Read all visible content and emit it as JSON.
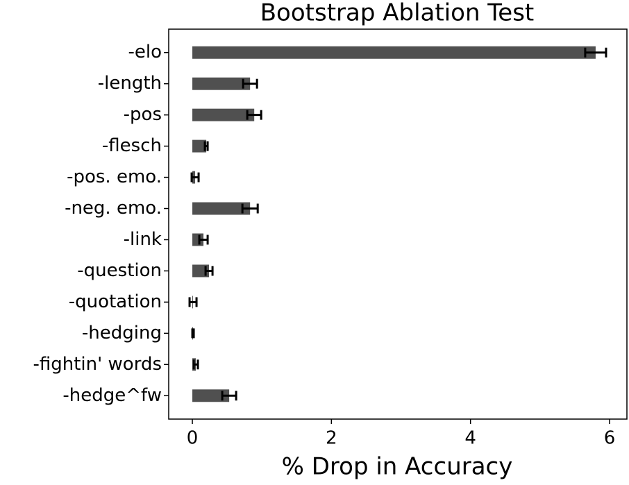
{
  "chart_data": {
    "type": "barh",
    "title": "Bootstrap Ablation Test",
    "xlabel": "% Drop in Accuracy",
    "categories": [
      "-elo",
      "-length",
      "-pos",
      "-flesch",
      "-pos. emo.",
      "-neg. emo.",
      "-link",
      "-question",
      "-quotation",
      "-hedging",
      "-fightin' words",
      "-hedge^fw"
    ],
    "values": [
      5.8,
      0.83,
      0.89,
      0.2,
      0.04,
      0.83,
      0.16,
      0.24,
      0.01,
      0.01,
      0.05,
      0.53
    ],
    "errors": [
      0.15,
      0.1,
      0.1,
      0.02,
      0.05,
      0.11,
      0.06,
      0.05,
      0.05,
      0.01,
      0.03,
      0.1
    ],
    "color": "#505050",
    "error_color": "#000000",
    "xlim": [
      -0.34,
      6.25
    ],
    "xticks": [
      0,
      2,
      4,
      6
    ]
  }
}
